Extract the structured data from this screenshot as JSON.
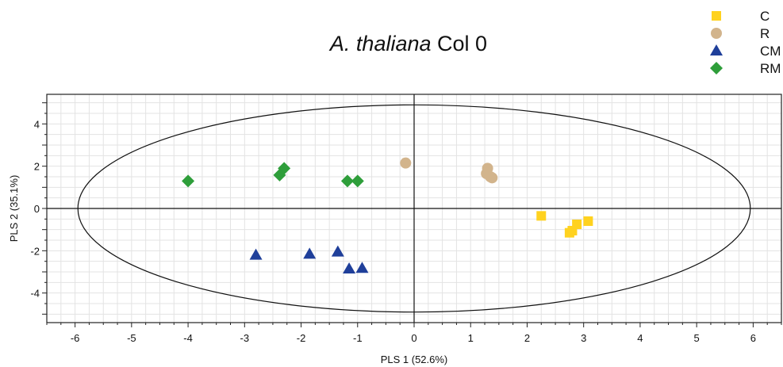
{
  "chart_data": {
    "type": "scatter",
    "title_italic": "A. thaliana",
    "title_rest": "Col 0",
    "xlabel": "PLS 1 (52.6%)",
    "ylabel": "PLS 2 (35.1%)",
    "xlim": [
      -6.5,
      6.5
    ],
    "ylim": [
      -5.4,
      5.4
    ],
    "xticks": [
      -6,
      -5,
      -4,
      -3,
      -2,
      -1,
      0,
      1,
      2,
      3,
      4,
      5,
      6
    ],
    "yticks": [
      -4,
      -2,
      0,
      2,
      4
    ],
    "grid": true,
    "ellipse": {
      "cx": 0,
      "cy": 0,
      "rx": 5.95,
      "ry": 4.9
    },
    "legend_position": "top-right",
    "series": [
      {
        "name": "C",
        "marker": "square",
        "color": "#FFD21F",
        "points": [
          [
            2.25,
            -0.35
          ],
          [
            2.75,
            -1.15
          ],
          [
            2.8,
            -1.05
          ],
          [
            2.88,
            -0.75
          ],
          [
            3.08,
            -0.6
          ]
        ]
      },
      {
        "name": "R",
        "marker": "circle",
        "color": "#D2B48C",
        "points": [
          [
            -0.15,
            2.15
          ],
          [
            1.28,
            1.65
          ],
          [
            1.3,
            1.9
          ],
          [
            1.35,
            1.5
          ],
          [
            1.38,
            1.45
          ]
        ]
      },
      {
        "name": "CM",
        "marker": "triangle",
        "color": "#1F3F9A",
        "points": [
          [
            -2.8,
            -2.2
          ],
          [
            -1.85,
            -2.15
          ],
          [
            -1.35,
            -2.05
          ],
          [
            -1.15,
            -2.85
          ],
          [
            -0.92,
            -2.82
          ]
        ]
      },
      {
        "name": "RM",
        "marker": "diamond",
        "color": "#2E9E3A",
        "points": [
          [
            -4.0,
            1.3
          ],
          [
            -2.38,
            1.58
          ],
          [
            -2.3,
            1.9
          ],
          [
            -1.18,
            1.3
          ],
          [
            -1.0,
            1.3
          ]
        ]
      }
    ]
  }
}
